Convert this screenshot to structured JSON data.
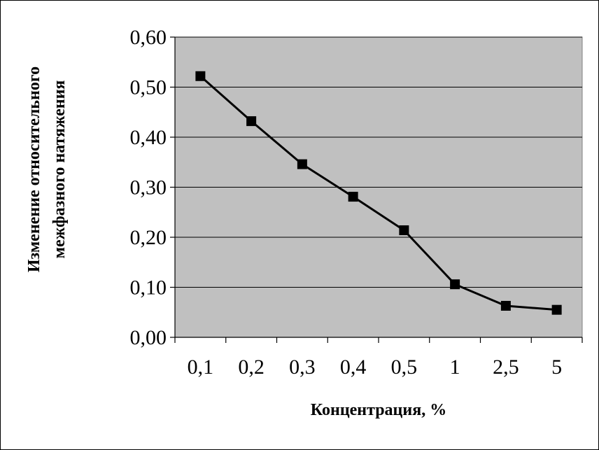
{
  "chart_data": {
    "type": "line",
    "title": "",
    "xlabel": "Концентрация, %",
    "ylabel_lines": [
      "Изменение относительного",
      "межфазного натяжения"
    ],
    "categories": [
      "0,1",
      "0,2",
      "0,3",
      "0,4",
      "0,5",
      "1",
      "2,5",
      "5"
    ],
    "series": [
      {
        "values": [
          0.522,
          0.432,
          0.346,
          0.281,
          0.214,
          0.106,
          0.063,
          0.055
        ]
      }
    ],
    "ylim": [
      0,
      0.6
    ],
    "y_ticks": [
      0,
      0.1,
      0.2,
      0.3,
      0.4,
      0.5,
      0.6
    ],
    "y_tick_labels": [
      "0,00",
      "0,10",
      "0,20",
      "0,30",
      "0,40",
      "0,50",
      "0,60"
    ],
    "grid": "horizontal",
    "legend": "none",
    "colors": {
      "plot_background": "#c0c0c0",
      "gridline": "#000000",
      "series_line": "#000000",
      "marker": "#000000"
    }
  }
}
